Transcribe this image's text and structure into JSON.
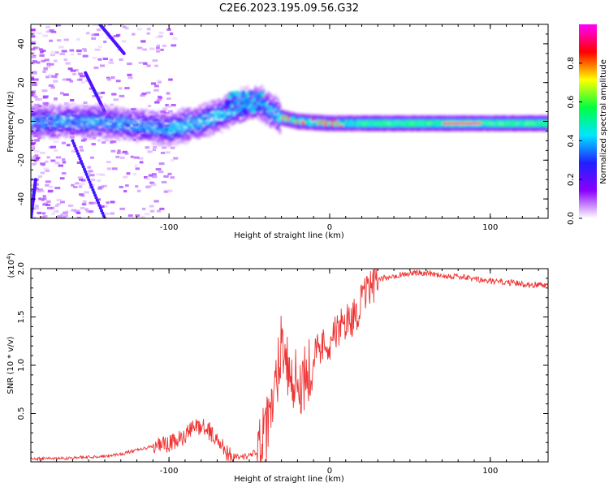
{
  "figure": {
    "title": "C2E6.2023.195.09.56.G32"
  },
  "chart_data": [
    {
      "type": "heatmap",
      "xlabel": "Height of straight line (km)",
      "ylabel": "Frequency (Hz)",
      "xlim": [
        -186,
        136
      ],
      "ylim": [
        -50,
        50
      ],
      "xticks": [
        -100,
        0,
        100
      ],
      "yticks": [
        -40,
        -20,
        0,
        20,
        40
      ],
      "colorbar": {
        "label": "Normalized spectral amplitude",
        "range": [
          0,
          1
        ],
        "ticks": [
          "0.0",
          "0.2",
          "0.4",
          "0.6",
          "0.8"
        ],
        "colors": [
          "#ffffff",
          "#8a00ff",
          "#2020ff",
          "#00e5ff",
          "#00ff40",
          "#ffff00",
          "#ff0000",
          "#ff00ff"
        ]
      },
      "ridge": {
        "description_points_x": [
          -186,
          -160,
          -140,
          -120,
          -100,
          -80,
          -60,
          -45,
          -35,
          -30,
          -20,
          0,
          20,
          60,
          100,
          136
        ],
        "description_points_y": [
          0,
          0,
          0,
          -2,
          -4,
          0,
          6,
          10,
          5,
          2,
          0,
          -1,
          -1,
          -1,
          -1,
          -1
        ]
      }
    },
    {
      "type": "line",
      "xlabel": "Height of straight line (km)",
      "ylabel": "SNR (10 * v/v)",
      "multiplier": "(x10",
      "multiplier_exp": "4",
      "multiplier_close": ")",
      "xlim": [
        -186,
        136
      ],
      "ylim": [
        0,
        2.0
      ],
      "xticks": [
        -100,
        0,
        100
      ],
      "yticks": [
        "0.5",
        "1.0",
        "1.5",
        "2.0"
      ],
      "line_color": "#ee3333",
      "envelope": {
        "x": [
          -186,
          -160,
          -140,
          -130,
          -120,
          -110,
          -100,
          -90,
          -85,
          -80,
          -75,
          -70,
          -65,
          -60,
          -55,
          -50,
          -45,
          -40,
          -35,
          -32,
          -30,
          -28,
          -25,
          -22,
          -20,
          -15,
          -10,
          -5,
          0,
          5,
          10,
          15,
          20,
          25,
          30,
          40,
          50,
          60,
          70,
          80,
          90,
          100,
          110,
          120,
          136
        ],
        "y": [
          0.03,
          0.04,
          0.06,
          0.08,
          0.12,
          0.16,
          0.18,
          0.26,
          0.35,
          0.38,
          0.32,
          0.22,
          0.12,
          0.06,
          0.05,
          0.06,
          0.12,
          0.25,
          0.6,
          1.0,
          1.3,
          1.2,
          0.9,
          0.85,
          0.8,
          0.9,
          1.1,
          1.2,
          1.25,
          1.35,
          1.45,
          1.5,
          1.65,
          1.8,
          1.88,
          1.93,
          1.95,
          1.96,
          1.93,
          1.92,
          1.89,
          1.87,
          1.86,
          1.84,
          1.83
        ]
      }
    }
  ]
}
